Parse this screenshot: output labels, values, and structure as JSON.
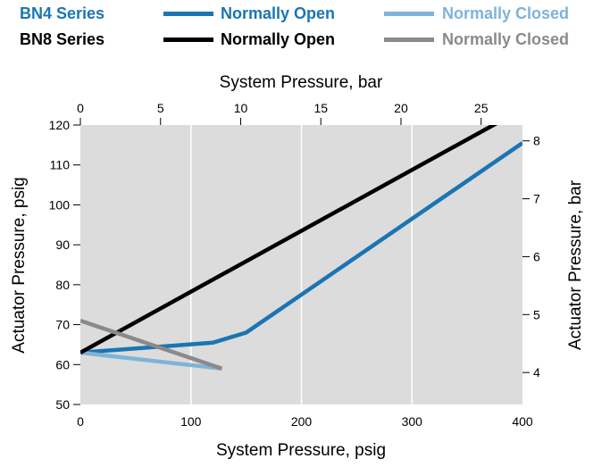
{
  "legend": {
    "rows": [
      {
        "series_label": "BN4 Series",
        "series_color": "#1a75b3",
        "entries": [
          {
            "label": "Normally Open",
            "color": "#1a75b3"
          },
          {
            "label": "Normally Closed",
            "color": "#7fb3d8"
          }
        ]
      },
      {
        "series_label": "BN8 Series",
        "series_color": "#000000",
        "entries": [
          {
            "label": "Normally Open",
            "color": "#000000"
          },
          {
            "label": "Normally Closed",
            "color": "#8a8a8a"
          }
        ]
      }
    ]
  },
  "chart_data": {
    "type": "line",
    "xlabel": "System Pressure, psig",
    "ylabel": "Actuator Pressure, psig",
    "x2label": "System Pressure, bar",
    "y2label": "Actuator Pressure, bar",
    "xlim": [
      0,
      400
    ],
    "ylim": [
      50,
      120
    ],
    "x_ticks": [
      "0",
      "100",
      "200",
      "300",
      "400"
    ],
    "y_ticks": [
      "50",
      "60",
      "70",
      "80",
      "90",
      "100",
      "110",
      "120"
    ],
    "x2_ticks": [
      "0",
      "5",
      "10",
      "15",
      "20",
      "25"
    ],
    "y2_ticks": [
      "4",
      "5",
      "6",
      "7",
      "8"
    ],
    "grid": true,
    "series": [
      {
        "name": "BN4 Series Normally Open",
        "color": "#1a75b3",
        "points": [
          [
            0,
            63
          ],
          [
            120,
            65.5
          ],
          [
            150,
            68
          ],
          [
            400,
            115.5
          ]
        ]
      },
      {
        "name": "BN4 Series Normally Closed",
        "color": "#7fb3d8",
        "points": [
          [
            0,
            63
          ],
          [
            128,
            59
          ]
        ]
      },
      {
        "name": "BN8 Series Normally Open",
        "color": "#000000",
        "points": [
          [
            0,
            63
          ],
          [
            400,
            124
          ]
        ]
      },
      {
        "name": "BN8 Series Normally Closed",
        "color": "#8a8a8a",
        "points": [
          [
            0,
            71
          ],
          [
            128,
            59
          ]
        ]
      }
    ]
  }
}
